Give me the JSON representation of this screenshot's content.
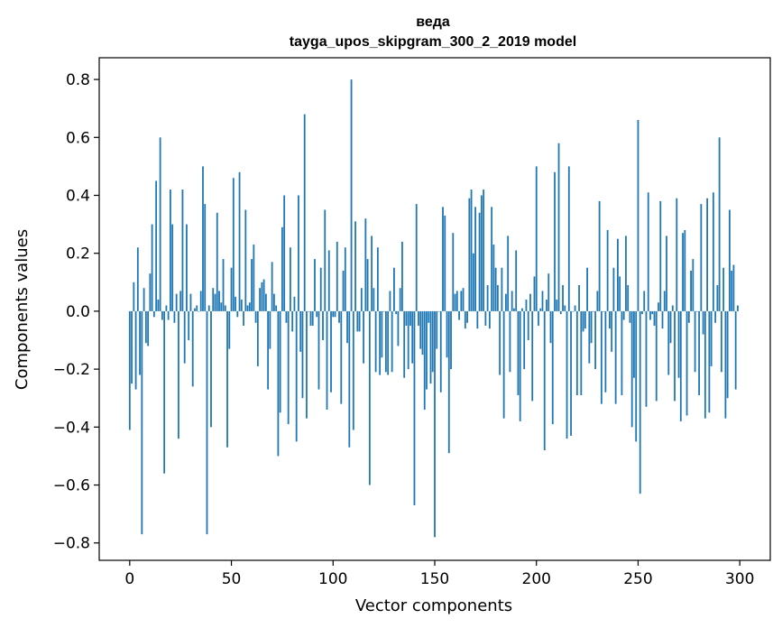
{
  "chart_data": {
    "type": "bar",
    "title": "веда",
    "subtitle": "tayga_upos_skipgram_300_2_2019 model",
    "xlabel": "Vector components",
    "ylabel": "Components values",
    "xlim": [
      -15,
      315
    ],
    "ylim": [
      -0.86,
      0.875
    ],
    "xticks": [
      0,
      50,
      100,
      150,
      200,
      250,
      300
    ],
    "xtick_labels": [
      "0",
      "50",
      "100",
      "150",
      "200",
      "250",
      "300"
    ],
    "yticks": [
      0.8,
      0.6,
      0.4,
      0.2,
      0.0,
      -0.2,
      -0.4,
      -0.6,
      -0.8
    ],
    "ytick_labels": [
      "0.8",
      "0.6",
      "0.4",
      "0.2",
      "0.0",
      "−0.2",
      "−0.4",
      "−0.6",
      "−0.8"
    ],
    "color": "#1f77b4",
    "grid": false,
    "values": [
      -0.41,
      -0.25,
      0.1,
      -0.27,
      0.22,
      -0.22,
      -0.77,
      0.08,
      -0.11,
      -0.12,
      0.13,
      0.3,
      -0.02,
      0.45,
      0.04,
      0.6,
      -0.03,
      -0.56,
      0.02,
      -0.03,
      0.42,
      0.3,
      -0.04,
      0.06,
      -0.44,
      0.07,
      0.42,
      -0.18,
      0.3,
      -0.1,
      0.06,
      -0.26,
      0.01,
      0.02,
      0.0,
      0.07,
      0.5,
      0.37,
      -0.77,
      0.02,
      -0.4,
      0.08,
      0.06,
      0.34,
      0.07,
      0.03,
      0.18,
      0.02,
      -0.47,
      -0.13,
      0.15,
      0.46,
      0.05,
      -0.02,
      0.48,
      0.04,
      -0.05,
      0.35,
      0.02,
      0.03,
      0.18,
      0.23,
      -0.04,
      -0.19,
      0.08,
      0.1,
      0.11,
      0.06,
      -0.27,
      -0.13,
      0.17,
      0.06,
      0.02,
      -0.5,
      -0.35,
      0.29,
      0.4,
      -0.04,
      -0.39,
      0.22,
      -0.07,
      0.05,
      -0.45,
      0.4,
      -0.14,
      -0.3,
      0.68,
      -0.37,
      0.0,
      -0.05,
      -0.05,
      0.18,
      -0.02,
      -0.27,
      0.15,
      -0.1,
      0.35,
      -0.34,
      0.21,
      -0.28,
      -0.02,
      -0.02,
      0.24,
      -0.04,
      -0.32,
      0.14,
      0.22,
      -0.11,
      -0.47,
      0.8,
      -0.41,
      0.31,
      -0.07,
      -0.07,
      0.08,
      -0.18,
      0.32,
      0.18,
      -0.6,
      0.26,
      0.08,
      -0.21,
      0.22,
      -0.22,
      -0.16,
      0.0,
      -0.21,
      -0.22,
      0.07,
      -0.21,
      0.15,
      -0.01,
      -0.12,
      0.08,
      0.24,
      -0.23,
      -0.05,
      -0.2,
      -0.05,
      -0.18,
      -0.67,
      0.37,
      -0.05,
      -0.13,
      -0.15,
      -0.34,
      -0.27,
      -0.04,
      -0.25,
      -0.21,
      -0.78,
      -0.13,
      0.0,
      -0.28,
      0.36,
      0.33,
      -0.16,
      -0.49,
      -0.2,
      0.27,
      0.06,
      0.07,
      -0.03,
      0.07,
      0.08,
      -0.06,
      -0.04,
      0.39,
      0.42,
      0.2,
      0.36,
      -0.06,
      0.34,
      0.4,
      0.42,
      -0.05,
      0.09,
      -0.06,
      0.36,
      0.23,
      0.15,
      0.09,
      -0.22,
      0.15,
      -0.37,
      0.06,
      0.26,
      -0.21,
      0.07,
      0.01,
      0.21,
      -0.29,
      -0.38,
      0.01,
      -0.2,
      0.04,
      -0.1,
      0.06,
      -0.31,
      0.12,
      0.5,
      -0.05,
      0.01,
      0.07,
      -0.48,
      0.04,
      0.13,
      -0.11,
      -0.39,
      0.48,
      0.04,
      0.58,
      -0.01,
      0.09,
      0.02,
      -0.44,
      0.5,
      -0.43,
      0.0,
      0.02,
      -0.29,
      0.09,
      -0.29,
      -0.07,
      -0.06,
      0.15,
      -0.18,
      -0.11,
      0.0,
      -0.2,
      0.07,
      0.38,
      -0.32,
      0.0,
      -0.28,
      0.28,
      -0.06,
      -0.14,
      0.15,
      -0.32,
      0.25,
      0.12,
      -0.29,
      -0.03,
      0.26,
      0.09,
      -0.04,
      -0.4,
      -0.23,
      -0.45,
      0.66,
      -0.63,
      -0.01,
      0.07,
      -0.33,
      0.41,
      -0.03,
      -0.01,
      -0.05,
      -0.31,
      0.03,
      0.38,
      -0.06,
      0.07,
      0.26,
      -0.22,
      -0.11,
      0.02,
      -0.31,
      0.39,
      -0.23,
      -0.38,
      0.27,
      0.28,
      -0.36,
      -0.04,
      0.14,
      0.18,
      -0.21,
      0.0,
      -0.29,
      0.37,
      -0.08,
      -0.37,
      0.39,
      -0.35,
      -0.19,
      0.41,
      -0.04,
      0.09,
      0.6,
      -0.21,
      0.15,
      -0.37,
      -0.3,
      0.35,
      0.14,
      0.16,
      -0.27,
      0.02
    ]
  }
}
